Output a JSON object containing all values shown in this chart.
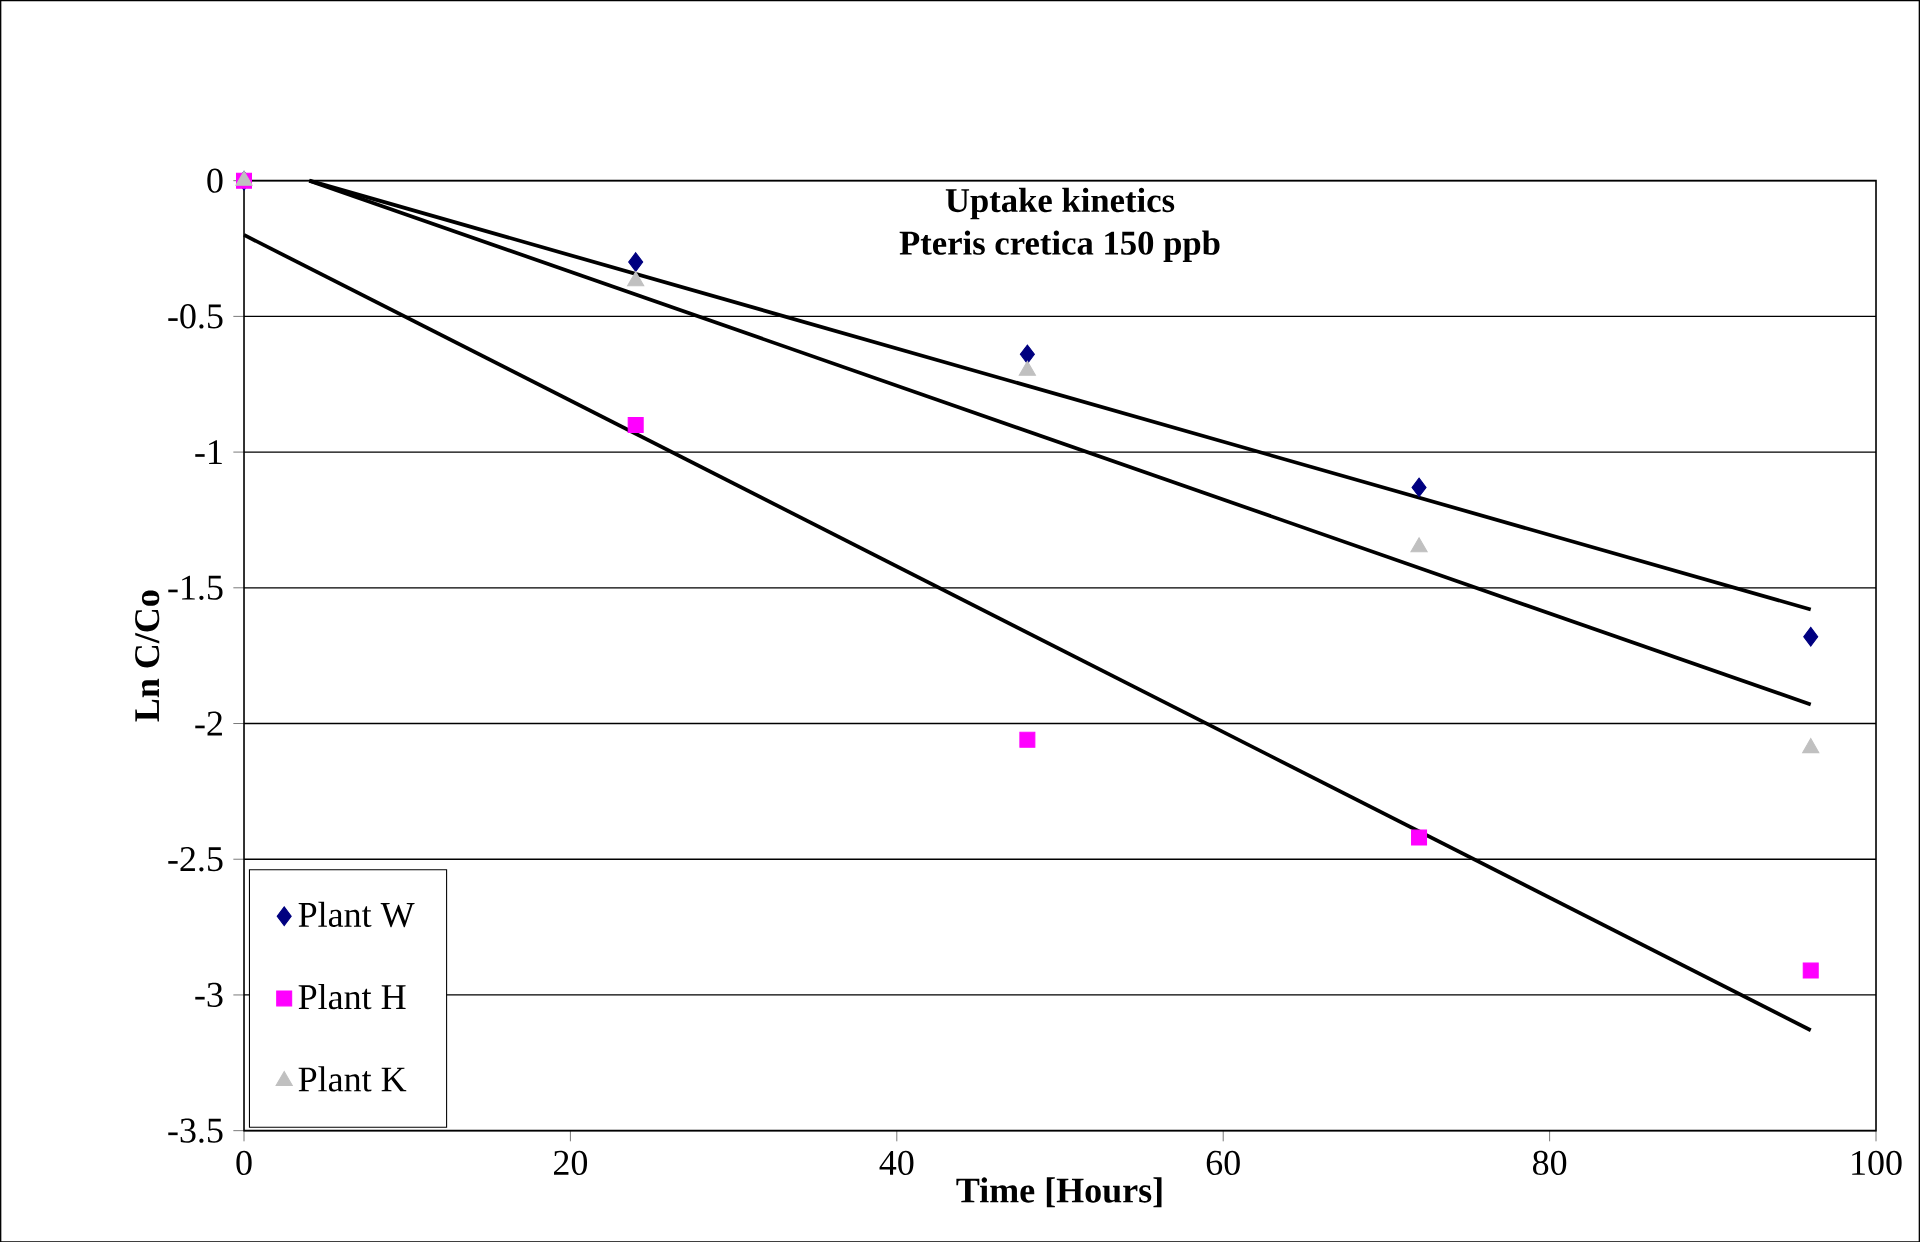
{
  "chart_data": {
    "type": "scatter",
    "title": "Uptake kinetics",
    "subtitle": "Pteris cretica 150 ppb",
    "xlabel": "Time [Hours]",
    "ylabel": "Ln C/Co",
    "xlim": [
      0,
      100
    ],
    "ylim": [
      -3.5,
      0
    ],
    "xticks": [
      0,
      20,
      40,
      60,
      80,
      100
    ],
    "yticks": [
      -3.5,
      -3,
      -2.5,
      -2,
      -1.5,
      -1,
      -0.5,
      0
    ],
    "grid": "y",
    "legend": "bottom left",
    "series": [
      {
        "name": "Plant W",
        "color": "#000080",
        "marker": "diamond",
        "x": [
          0,
          24,
          48,
          72,
          96
        ],
        "values": [
          0,
          -0.3,
          -0.64,
          -1.13,
          -1.68
        ]
      },
      {
        "name": "Plant H",
        "color": "#ff00ff",
        "marker": "square",
        "x": [
          0,
          24,
          48,
          72,
          96
        ],
        "values": [
          0,
          -0.9,
          -2.06,
          -2.42,
          -2.91
        ]
      },
      {
        "name": "Plant K",
        "color": "#c0c0c0",
        "marker": "triangle",
        "x": [
          0,
          24,
          48,
          72,
          96
        ],
        "values": [
          0,
          -0.37,
          -0.7,
          -1.35,
          -2.09
        ]
      },
      {
        "type": "line",
        "color": "#000000",
        "marker": "none",
        "x": [
          4,
          96
        ],
        "values": [
          0,
          -1.58
        ]
      },
      {
        "type": "line",
        "color": "#000000",
        "marker": "none",
        "x": [
          4,
          96
        ],
        "values": [
          0,
          -1.93
        ]
      },
      {
        "type": "line",
        "color": "#000000",
        "marker": "none",
        "x": [
          0,
          96
        ],
        "values": [
          -0.2,
          -3.13
        ]
      }
    ]
  }
}
